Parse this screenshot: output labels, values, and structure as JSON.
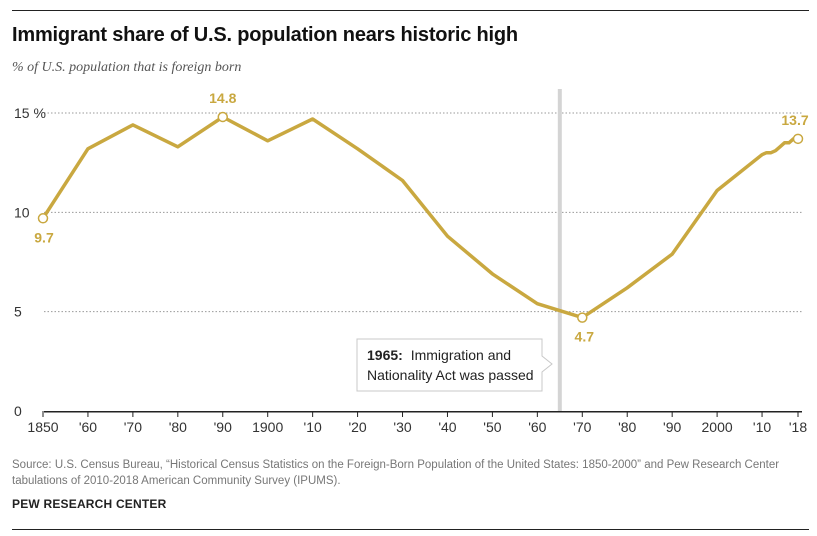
{
  "title": "Immigrant share of U.S. population nears historic high",
  "subtitle": "% of U.S. population that is foreign born",
  "source": "Source: U.S. Census Bureau, “Historical Census Statistics on the Foreign-Born Population of the United States: 1850-2000” and Pew Research Center tabulations of 2010-2018 American Community Survey (IPUMS).",
  "credit": "PEW RESEARCH CENTER",
  "annotation": {
    "bold": "1965:",
    "line1": "Immigration and",
    "line2": "Nationality Act was passed",
    "year": 1965
  },
  "colors": {
    "line": "#c9a840",
    "label": "#c9a840",
    "grid": "#999999",
    "marker_line": "#d4d4d4"
  },
  "chart_data": {
    "type": "line",
    "x": [
      1850,
      1860,
      1870,
      1880,
      1890,
      1900,
      1910,
      1920,
      1930,
      1940,
      1950,
      1960,
      1970,
      1980,
      1990,
      2000,
      2010,
      2011,
      2012,
      2013,
      2014,
      2015,
      2016,
      2017,
      2018
    ],
    "values": [
      9.7,
      13.2,
      14.4,
      13.3,
      14.8,
      13.6,
      14.7,
      13.2,
      11.6,
      8.8,
      6.9,
      5.4,
      4.7,
      6.2,
      7.9,
      11.1,
      12.9,
      13.0,
      13.0,
      13.1,
      13.3,
      13.5,
      13.5,
      13.7,
      13.7
    ],
    "ylim": [
      0,
      15
    ],
    "yticks": [
      0,
      5,
      10,
      15
    ],
    "ytick_labels": [
      "0",
      "5",
      "10",
      "15 %"
    ],
    "xticks": [
      1850,
      1860,
      1870,
      1880,
      1890,
      1900,
      1910,
      1920,
      1930,
      1940,
      1950,
      1960,
      1970,
      1980,
      1990,
      2000,
      2010,
      2018
    ],
    "xtick_labels": [
      "1850",
      "'60",
      "'70",
      "'80",
      "'90",
      "1900",
      "'10",
      "'20",
      "'30",
      "'40",
      "'50",
      "'60",
      "'70",
      "'80",
      "'90",
      "2000",
      "'10",
      "'18"
    ],
    "data_labels": [
      {
        "x": 1850,
        "text": "9.7",
        "pos": "below"
      },
      {
        "x": 1890,
        "text": "14.8",
        "pos": "above"
      },
      {
        "x": 1970,
        "text": "4.7",
        "pos": "below"
      },
      {
        "x": 2018,
        "text": "13.7",
        "pos": "above"
      }
    ],
    "grid": true,
    "legend": "none"
  }
}
